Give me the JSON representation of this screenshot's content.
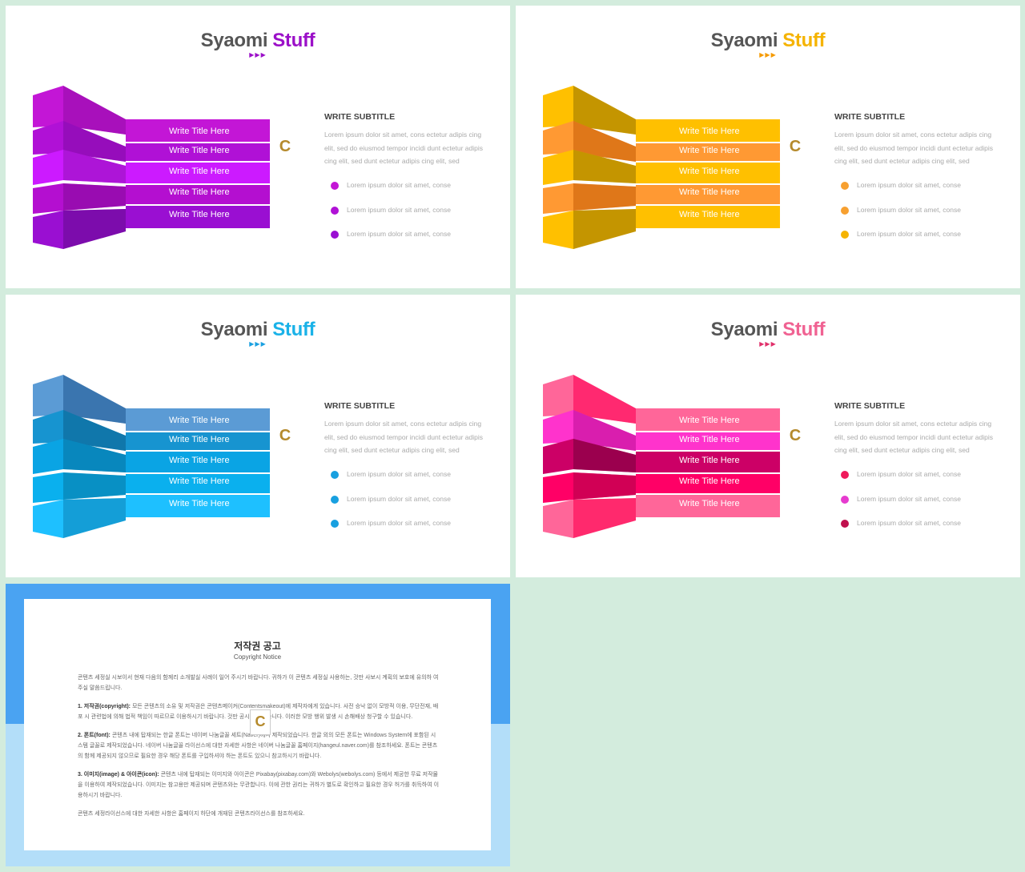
{
  "slides": [
    {
      "title": "Syaomi",
      "title_accent": "Stuff",
      "arrows": "▶▶▶",
      "labels": [
        "Write Title Here",
        "Write Title Here",
        "Write Title Here",
        "Write Title Here",
        "Write Title Here"
      ],
      "subtitle": "WRITE SUBTITLE",
      "paragraph": "Lorem ipsum dolor sit amet, cons ectetur adipis cing elit, sed do eiusmod tempor incidi dunt ectetur adipis cing elit, sed dunt ectetur adipis cing elit, sed",
      "bullets": [
        "Lorem ipsum dolor sit amet, conse",
        "Lorem ipsum dolor sit amet, conse",
        "Lorem ipsum dolor sit amet, conse"
      ],
      "accent": "#9b10c8",
      "colors": [
        "#c316d6",
        "#b011d6",
        "#cc1aff",
        "#b40fd0",
        "#9a0fd2"
      ],
      "bullet_colors": [
        "#c316d6",
        "#b011d6",
        "#9a0fd2"
      ]
    },
    {
      "title": "Syaomi",
      "title_accent": "Stuff",
      "arrows": "▶▶▶",
      "labels": [
        "Write Title Here",
        "Write Title Here",
        "Write Title Here",
        "Write Title Here",
        "Write Title Here"
      ],
      "subtitle": "WRITE SUBTITLE",
      "paragraph": "Lorem ipsum dolor sit amet, cons ectetur adipis cing elit, sed do eiusmod tempor incidi dunt ectetur adipis cing elit, sed dunt ectetur adipis cing elit, sed",
      "bullets": [
        "Lorem ipsum dolor sit amet, conse",
        "Lorem ipsum dolor sit amet, conse",
        "Lorem ipsum dolor sit amet, conse"
      ],
      "accent": "#f5b300",
      "colors": [
        "#ffc000",
        "#ff9933",
        "#ffc000",
        "#ff9933",
        "#ffc000"
      ],
      "bullet_colors": [
        "#f7a030",
        "#f7a030",
        "#f5b300"
      ]
    },
    {
      "title": "Syaomi",
      "title_accent": "Stuff",
      "arrows": "▶▶▶",
      "labels": [
        "Write Title Here",
        "Write Title Here",
        "Write Title Here",
        "Write Title Here",
        "Write Title Here"
      ],
      "subtitle": "WRITE SUBTITLE",
      "paragraph": "Lorem ipsum dolor sit amet, cons ectetur adipis cing elit, sed do eiusmod tempor incidi dunt ectetur adipis cing elit, sed dunt ectetur adipis cing elit, sed",
      "bullets": [
        "Lorem ipsum dolor sit amet, conse",
        "Lorem ipsum dolor sit amet, conse",
        "Lorem ipsum dolor sit amet, conse"
      ],
      "accent": "#1ab2e8",
      "colors": [
        "#5b9bd5",
        "#1794d0",
        "#0aa4e4",
        "#0ab0ee",
        "#1ec0ff"
      ],
      "bullet_colors": [
        "#18a0e0",
        "#18a0e0",
        "#18a0e0"
      ]
    },
    {
      "title": "Syaomi",
      "title_accent": "Stuff",
      "arrows": "▶▶▶",
      "labels": [
        "Write Title Here",
        "Write Title Here",
        "Write Title Here",
        "Write Title Here",
        "Write Title Here"
      ],
      "subtitle": "WRITE SUBTITLE",
      "paragraph": "Lorem ipsum dolor sit amet, cons ectetur adipis cing elit, sed do eiusmod tempor incidi dunt ectetur adipis cing elit, sed dunt ectetur adipis cing elit, sed",
      "bullets": [
        "Lorem ipsum dolor sit amet, conse",
        "Lorem ipsum dolor sit amet, conse",
        "Lorem ipsum dolor sit amet, conse"
      ],
      "accent": "#f06292",
      "colors": [
        "#ff6699",
        "#ff33cc",
        "#cc0066",
        "#ff0066",
        "#ff6699"
      ],
      "bullet_colors": [
        "#ef1a5b",
        "#e63bcf",
        "#c0104e"
      ]
    }
  ],
  "copyright": {
    "title": "저작권 공고",
    "subtitle": "Copyright Notice",
    "intro": "콘텐츠 세정실 시보이서 현재 다음의 함께리 소개발실 사례이 일어 주시기 바랍니다. 귀하가 이 콘텐츠 세정실 사용하는, 것만 사보시 계획의 보호에 유의하 여주실 말씀드립니다.",
    "p1_head": "1. 저작권(copyright):",
    "p1": "모든 콘텐츠의 소유 및 저작권은 콘텐츠메이커(Contentsmakeout)에 제작자에게 있습니다. 사전 승낙 없이 모방적 이용, 무단전재, 배포 시 관련법에 의해 법적 책임이 따르므로 이용하시기 바랍니다. 것만 공시되어 있습니다. 이러한 모방 행위 발생 시 손해배상 청구할 수 있습니다.",
    "p2_head": "2. 폰트(font):",
    "p2": "콘텐츠 내에 탑재되는 한글 폰트는 네이버 나눔글꼴 세트(Naver)에서 제작되었습니다. 한글 외의 모든 폰트는 Windows System에 포함된 시스템 글꼴로 제작되었습니다. 네이버 나눔글꼴 라이선스에 대한 자세한 사항은 네이버 나눔글꼴 홈페이지(hangeul.naver.com)를 참조하세요. 폰트는 콘텐츠의 함께 제공되지 않으므로 필요한 경우 해당 폰트를 구입하셔야 하는 폰트도 있으니 참고하시기 바랍니다.",
    "p3_head": "3. 이미지(image) & 아이콘(icon):",
    "p3": "콘텐츠 내에 탑재되는 이미지와 아이콘은 Pixabay(pixabay.com)와 Webolys(webolys.com) 등에서 제공한 무료 저작물을 이용하여 제작되었습니다. 이미지는 참고용만 제공되며 콘텐츠와는 무관합니다. 이에 관한 권리는 귀하가 별도로 확인하고 필요한 경우 허가를 취득하여 이용하시기 바랍니다.",
    "outro": "콘텐츠 세정라이선스에 대한 자세한 사항은 홈페이지 하단에 개재된 콘텐츠라이선스를 참조하세요."
  }
}
